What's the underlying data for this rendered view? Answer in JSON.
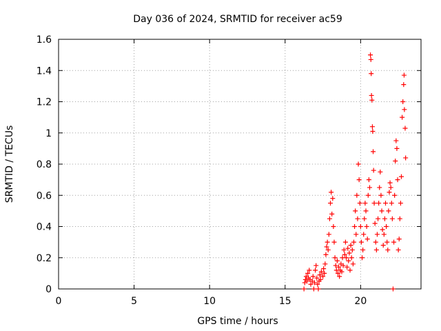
{
  "chart_data": {
    "type": "scatter",
    "title": "Day 036 of 2024, SRMTID for receiver ac59",
    "xlabel": "GPS time / hours",
    "ylabel": "SRMTID / TECUs",
    "xlim": [
      0,
      24
    ],
    "ylim": [
      0,
      1.6
    ],
    "xticks": [
      0,
      5,
      10,
      15,
      20
    ],
    "yticks": [
      0,
      0.2,
      0.4,
      0.6,
      0.8,
      1,
      1.2,
      1.4,
      1.6
    ],
    "xtick_labels": [
      "0",
      "5",
      "10",
      "15",
      "20"
    ],
    "ytick_labels": [
      "0",
      "0.2",
      "0.4",
      "0.6",
      "0.8",
      "1",
      "1.2",
      "1.4",
      "1.6"
    ],
    "grid": true,
    "marker": "+",
    "color": "#ff0000",
    "series": [
      {
        "name": "SRMTID",
        "points": [
          [
            16.25,
            0.0
          ],
          [
            16.3,
            0.04
          ],
          [
            16.35,
            0.06
          ],
          [
            16.4,
            0.08
          ],
          [
            16.45,
            0.05
          ],
          [
            16.5,
            0.1
          ],
          [
            16.55,
            0.07
          ],
          [
            16.6,
            0.12
          ],
          [
            16.65,
            0.06
          ],
          [
            16.7,
            0.03
          ],
          [
            16.8,
            0.05
          ],
          [
            16.85,
            0.08
          ],
          [
            16.9,
            0.0
          ],
          [
            16.95,
            0.04
          ],
          [
            17.0,
            0.12
          ],
          [
            17.05,
            0.15
          ],
          [
            17.1,
            0.07
          ],
          [
            17.15,
            0.03
          ],
          [
            17.2,
            0.0
          ],
          [
            17.25,
            0.05
          ],
          [
            17.3,
            0.09
          ],
          [
            17.35,
            0.06
          ],
          [
            17.4,
            0.11
          ],
          [
            17.5,
            0.08
          ],
          [
            17.55,
            0.13
          ],
          [
            17.6,
            0.1
          ],
          [
            17.65,
            0.16
          ],
          [
            17.7,
            0.22
          ],
          [
            17.75,
            0.27
          ],
          [
            17.8,
            0.3
          ],
          [
            17.85,
            0.25
          ],
          [
            17.9,
            0.35
          ],
          [
            17.95,
            0.45
          ],
          [
            18.0,
            0.55
          ],
          [
            18.05,
            0.62
          ],
          [
            18.1,
            0.48
          ],
          [
            18.15,
            0.58
          ],
          [
            18.2,
            0.4
          ],
          [
            18.25,
            0.3
          ],
          [
            18.3,
            0.2
          ],
          [
            18.35,
            0.15
          ],
          [
            18.4,
            0.12
          ],
          [
            18.45,
            0.18
          ],
          [
            18.5,
            0.1
          ],
          [
            18.55,
            0.14
          ],
          [
            18.6,
            0.08
          ],
          [
            18.65,
            0.12
          ],
          [
            18.7,
            0.16
          ],
          [
            18.75,
            0.11
          ],
          [
            18.8,
            0.2
          ],
          [
            18.85,
            0.15
          ],
          [
            18.9,
            0.25
          ],
          [
            18.95,
            0.22
          ],
          [
            19.0,
            0.3
          ],
          [
            19.05,
            0.2
          ],
          [
            19.1,
            0.14
          ],
          [
            19.15,
            0.26
          ],
          [
            19.2,
            0.18
          ],
          [
            19.25,
            0.23
          ],
          [
            19.3,
            0.12
          ],
          [
            19.35,
            0.28
          ],
          [
            19.4,
            0.2
          ],
          [
            19.45,
            0.25
          ],
          [
            19.5,
            0.16
          ],
          [
            19.55,
            0.3
          ],
          [
            19.6,
            0.4
          ],
          [
            19.65,
            0.5
          ],
          [
            19.7,
            0.35
          ],
          [
            19.75,
            0.6
          ],
          [
            19.8,
            0.45
          ],
          [
            19.85,
            0.8
          ],
          [
            19.9,
            0.7
          ],
          [
            19.95,
            0.55
          ],
          [
            20.0,
            0.4
          ],
          [
            20.05,
            0.3
          ],
          [
            20.1,
            0.2
          ],
          [
            20.15,
            0.25
          ],
          [
            20.2,
            0.35
          ],
          [
            20.25,
            0.45
          ],
          [
            20.3,
            0.55
          ],
          [
            20.35,
            0.5
          ],
          [
            20.4,
            0.4
          ],
          [
            20.45,
            0.32
          ],
          [
            20.5,
            0.6
          ],
          [
            20.55,
            0.7
          ],
          [
            20.6,
            0.65
          ],
          [
            20.65,
            1.5
          ],
          [
            20.68,
            1.47
          ],
          [
            20.7,
            1.38
          ],
          [
            20.72,
            1.24
          ],
          [
            20.75,
            1.21
          ],
          [
            20.78,
            1.04
          ],
          [
            20.8,
            1.01
          ],
          [
            20.83,
            0.88
          ],
          [
            20.86,
            0.76
          ],
          [
            20.9,
            0.55
          ],
          [
            20.95,
            0.42
          ],
          [
            21.0,
            0.3
          ],
          [
            21.05,
            0.25
          ],
          [
            21.1,
            0.35
          ],
          [
            21.15,
            0.45
          ],
          [
            21.2,
            0.55
          ],
          [
            21.25,
            0.65
          ],
          [
            21.3,
            0.75
          ],
          [
            21.35,
            0.6
          ],
          [
            21.4,
            0.5
          ],
          [
            21.45,
            0.38
          ],
          [
            21.5,
            0.28
          ],
          [
            21.55,
            0.35
          ],
          [
            21.6,
            0.45
          ],
          [
            21.65,
            0.55
          ],
          [
            21.7,
            0.4
          ],
          [
            21.75,
            0.3
          ],
          [
            21.8,
            0.25
          ],
          [
            21.85,
            0.5
          ],
          [
            21.9,
            0.62
          ],
          [
            21.95,
            0.68
          ],
          [
            22.0,
            0.65
          ],
          [
            22.05,
            0.55
          ],
          [
            22.1,
            0.45
          ],
          [
            22.15,
            0.0
          ],
          [
            22.2,
            0.3
          ],
          [
            22.25,
            0.6
          ],
          [
            22.3,
            0.82
          ],
          [
            22.35,
            0.95
          ],
          [
            22.4,
            0.9
          ],
          [
            22.45,
            0.7
          ],
          [
            22.5,
            0.25
          ],
          [
            22.55,
            0.32
          ],
          [
            22.6,
            0.45
          ],
          [
            22.65,
            0.55
          ],
          [
            22.7,
            0.72
          ],
          [
            22.75,
            1.1
          ],
          [
            22.8,
            1.2
          ],
          [
            22.85,
            1.31
          ],
          [
            22.88,
            1.37
          ],
          [
            22.9,
            1.15
          ],
          [
            22.95,
            1.03
          ],
          [
            22.98,
            0.84
          ]
        ]
      }
    ]
  }
}
